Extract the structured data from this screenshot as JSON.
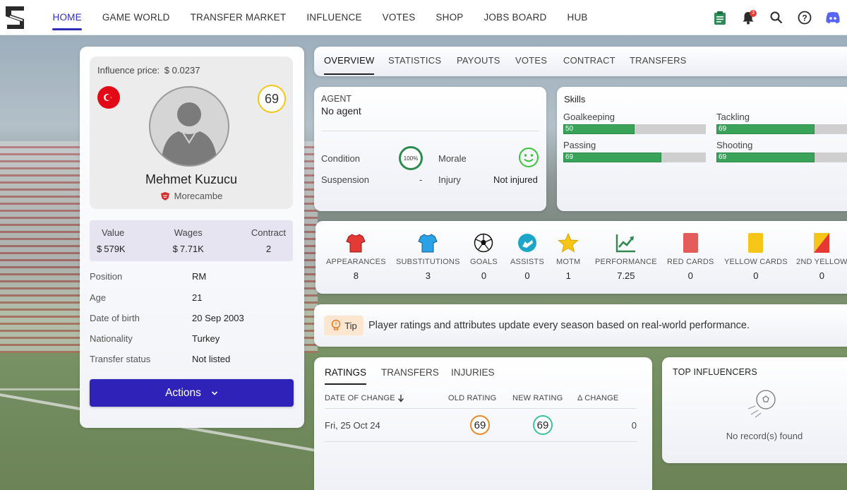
{
  "nav": {
    "items": [
      {
        "label": "HOME",
        "active": true
      },
      {
        "label": "GAME WORLD"
      },
      {
        "label": "TRANSFER MARKET"
      },
      {
        "label": "INFLUENCE"
      },
      {
        "label": "VOTES"
      },
      {
        "label": "SHOP"
      },
      {
        "label": "JOBS BOARD"
      },
      {
        "label": "HUB"
      }
    ],
    "notification_count": "3",
    "icons": [
      "clipboard-icon",
      "bell-icon",
      "search-icon",
      "help-icon",
      "discord-icon"
    ]
  },
  "player": {
    "influence_label": "Influence price:",
    "influence_value": "0.0237",
    "rating": "69",
    "name": "Mehmet Kuzucu",
    "club": "Morecambe",
    "value_label": "Value",
    "value": "579K",
    "wages_label": "Wages",
    "wages": "7.71K",
    "contract_label": "Contract",
    "contract": "2",
    "details": [
      {
        "key": "Position",
        "value": "RM"
      },
      {
        "key": "Age",
        "value": "21"
      },
      {
        "key": "Date of birth",
        "value": "20 Sep 2003"
      },
      {
        "key": "Nationality",
        "value": "Turkey"
      },
      {
        "key": "Transfer status",
        "value": "Not listed"
      }
    ],
    "actions_label": "Actions"
  },
  "tabs": [
    "OVERVIEW",
    "STATISTICS",
    "PAYOUTS",
    "VOTES",
    "CONTRACT",
    "TRANSFERS"
  ],
  "agent": {
    "label": "AGENT",
    "value": "No agent",
    "condition_label": "Condition",
    "condition_value": "100%",
    "morale_label": "Morale",
    "suspension_label": "Suspension",
    "suspension_value": "-",
    "injury_label": "Injury",
    "injury_value": "Not injured"
  },
  "skills": {
    "title": "Skills",
    "items": [
      {
        "label": "Goalkeeping",
        "value": "50",
        "fraction": 0.5
      },
      {
        "label": "Tackling",
        "value": "69",
        "fraction": 0.69
      },
      {
        "label": "Passing",
        "value": "69",
        "fraction": 0.69
      },
      {
        "label": "Shooting",
        "value": "69",
        "fraction": 0.69
      }
    ]
  },
  "season_stats": [
    {
      "label": "APPEARANCES",
      "value": "8",
      "icon": "shirt-red-icon"
    },
    {
      "label": "SUBSTITUTIONS",
      "value": "3",
      "icon": "shirt-blue-icon"
    },
    {
      "label": "GOALS",
      "value": "0",
      "icon": "football-icon"
    },
    {
      "label": "ASSISTS",
      "value": "0",
      "icon": "boot-icon"
    },
    {
      "label": "MOTM",
      "value": "1",
      "icon": "star-icon"
    },
    {
      "label": "PERFORMANCE",
      "value": "7.25",
      "icon": "trend-up-icon"
    },
    {
      "label": "RED CARDS",
      "value": "0",
      "icon": "red-card-icon"
    },
    {
      "label": "YELLOW CARDS",
      "value": "0",
      "icon": "yellow-card-icon"
    },
    {
      "label": "2ND YELLOW",
      "value": "0",
      "icon": "second-yellow-icon"
    }
  ],
  "tip": {
    "badge": "Tip",
    "text": "Player ratings and attributes update every season based on real-world performance."
  },
  "ratings": {
    "tabs": [
      "RATINGS",
      "TRANSFERS",
      "INJURIES"
    ],
    "headers": [
      "DATE OF CHANGE",
      "OLD RATING",
      "NEW RATING",
      "Δ CHANGE"
    ],
    "rows": [
      {
        "date": "Fri, 25 Oct 24",
        "old": "69",
        "new": "69",
        "change": "0"
      }
    ]
  },
  "top_influencers": {
    "title": "TOP INFLUENCERS",
    "empty": "No record(s) found"
  },
  "colors": {
    "accent": "#2f2fb5",
    "actions_button": "#2e22b8",
    "skill_bar": "#3aa35a",
    "rating_gold": "#f5c518",
    "rating_orange": "#e88a2a",
    "rating_green": "#3cc39b"
  }
}
